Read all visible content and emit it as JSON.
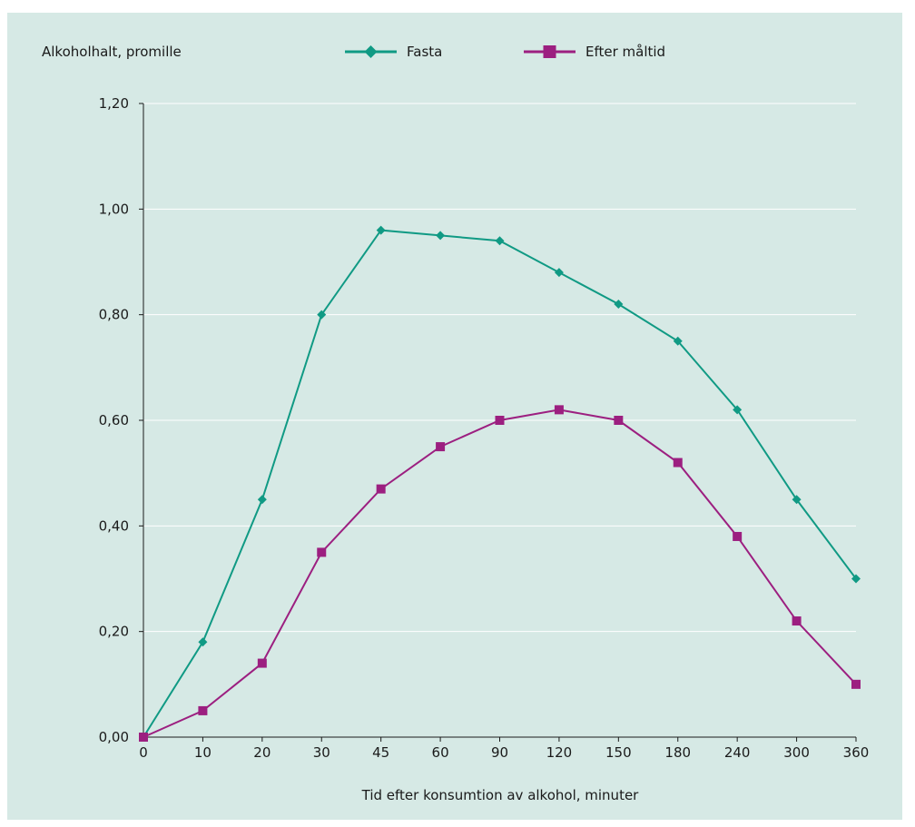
{
  "chart_data": {
    "type": "line",
    "ylabel": "Alkoholhalt, promille",
    "xlabel": "Tid efter konsumtion av alkohol, minuter",
    "categories": [
      "0",
      "10",
      "20",
      "30",
      "45",
      "60",
      "90",
      "120",
      "150",
      "180",
      "240",
      "300",
      "360"
    ],
    "yticks": [
      "0,00",
      "0,20",
      "0,40",
      "0,60",
      "0,80",
      "1,00",
      "1,20"
    ],
    "ylim": [
      0,
      1.2
    ],
    "grid": true,
    "legend_position": "top",
    "series": [
      {
        "name": "Fasta",
        "color": "#109a84",
        "marker": "diamond",
        "values": [
          0,
          0.18,
          0.45,
          0.8,
          0.96,
          0.95,
          0.94,
          0.88,
          0.82,
          0.75,
          0.62,
          0.45,
          0.3
        ]
      },
      {
        "name": "Efter måltid",
        "color": "#9c1f80",
        "marker": "square",
        "values": [
          0,
          0.05,
          0.14,
          0.35,
          0.47,
          0.55,
          0.6,
          0.62,
          0.6,
          0.52,
          0.38,
          0.22,
          0.1
        ]
      }
    ]
  }
}
